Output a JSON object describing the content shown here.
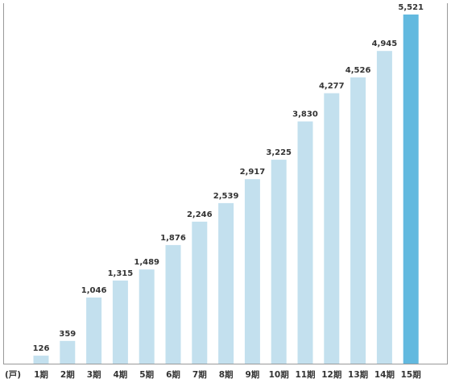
{
  "chart_data": {
    "type": "bar",
    "unit_label": "(戸)",
    "categories": [
      "1期",
      "2期",
      "3期",
      "4期",
      "5期",
      "6期",
      "7期",
      "8期",
      "9期",
      "10期",
      "11期",
      "12期",
      "13期",
      "14期",
      "15期"
    ],
    "values": [
      126,
      359,
      1046,
      1315,
      1489,
      1876,
      2246,
      2539,
      2917,
      3225,
      3830,
      4277,
      4526,
      4945,
      5521
    ],
    "value_labels": [
      "126",
      "359",
      "1,046",
      "1,315",
      "1,489",
      "1,876",
      "2,246",
      "2,539",
      "2,917",
      "3,225",
      "3,830",
      "4,277",
      "4,526",
      "4,945",
      "5,521"
    ],
    "ylim": [
      0,
      5521
    ],
    "grid": false,
    "colors": {
      "bar": "#c3e0ee",
      "highlight": "#62b9df",
      "axis": "#999999"
    },
    "highlight_index": 14
  }
}
